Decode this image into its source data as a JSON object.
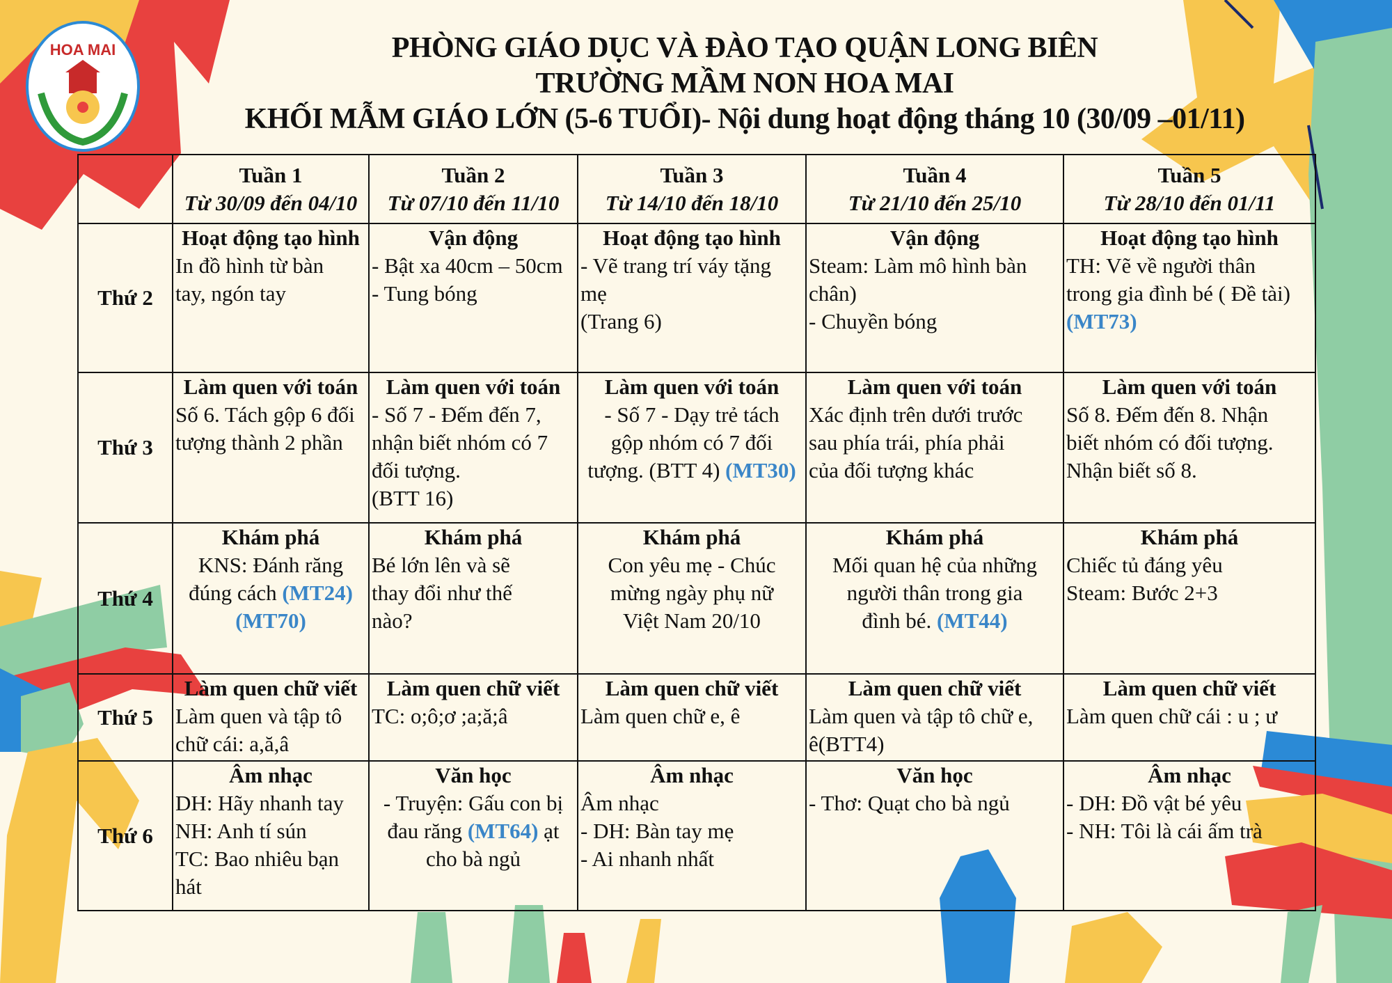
{
  "header": {
    "line1": "PHÒNG GIÁO DỤC VÀ ĐÀO TẠO QUẬN LONG BIÊN",
    "line2": "TRƯỜNG MẦM NON HOA MAI",
    "line3": "KHỐI MẪM GIÁO LỚN (5-6 TUỔI)- Nội dung hoạt động tháng 10 (30/09 –01/11)"
  },
  "logo": {
    "text_top": "TRƯỜNG MẦM NON",
    "text_name": "HOA MAI"
  },
  "colors": {
    "background": "#fdf8e9",
    "accent_blue": "#3a86c8",
    "deco_red": "#e8413f",
    "deco_yellow": "#f7c64e",
    "deco_green": "#8fcda4",
    "deco_blue": "#2b8ad6"
  },
  "weeks": [
    {
      "label": "Tuần 1",
      "range": "Từ 30/09 đến 04/10"
    },
    {
      "label": "Tuần 2",
      "range": "Từ 07/10 đến 11/10"
    },
    {
      "label": "Tuần 3",
      "range": "Từ 14/10 đến 18/10"
    },
    {
      "label": "Tuần 4",
      "range": "Từ 21/10 đến 25/10"
    },
    {
      "label": "Tuần 5",
      "range": "Từ 28/10 đến 01/11"
    }
  ],
  "rows": [
    {
      "day": "Thứ 2",
      "cells": [
        {
          "title": "Hoạt động tạo hình",
          "center": false,
          "lines": [
            [
              {
                "t": "In đồ hình từ bàn"
              }
            ],
            [
              {
                "t": "tay, ngón tay"
              }
            ]
          ]
        },
        {
          "title": "Vận động",
          "center": false,
          "lines": [
            [
              {
                "t": "- Bật xa 40cm – 50cm"
              }
            ],
            [
              {
                "t": "- Tung bóng"
              }
            ]
          ]
        },
        {
          "title": "Hoạt động tạo hình",
          "center": false,
          "lines": [
            [
              {
                "t": "- Vẽ trang trí váy tặng"
              }
            ],
            [
              {
                "t": "mẹ"
              }
            ],
            [
              {
                "t": "(Trang 6)"
              }
            ]
          ]
        },
        {
          "title": "Vận động",
          "center": false,
          "lines": [
            [
              {
                "t": "Steam: Làm mô hình bàn"
              }
            ],
            [
              {
                "t": "chân)"
              }
            ],
            [
              {
                "t": "- Chuyền bóng"
              }
            ]
          ]
        },
        {
          "title": "Hoạt động tạo hình",
          "center": false,
          "lines": [
            [
              {
                "t": "TH: Vẽ về người thân"
              }
            ],
            [
              {
                "t": "trong gia đình bé ( Đề tài)"
              }
            ],
            [
              {
                "t": "(MT73)",
                "blue": true
              }
            ]
          ]
        }
      ]
    },
    {
      "day": "Thứ 3",
      "cells": [
        {
          "title": "Làm quen với toán",
          "center": false,
          "lines": [
            [
              {
                "t": "Số 6. Tách gộp 6 đối"
              }
            ],
            [
              {
                "t": " tượng thành 2 phần"
              }
            ]
          ]
        },
        {
          "title": "Làm quen với toán",
          "center": false,
          "lines": [
            [
              {
                "t": "- Số 7 - Đếm đến 7,"
              }
            ],
            [
              {
                "t": "nhận biết nhóm có 7"
              }
            ],
            [
              {
                "t": "đối tượng."
              }
            ],
            [
              {
                "t": "(BTT 16)"
              }
            ]
          ]
        },
        {
          "title": "Làm quen với toán",
          "center": true,
          "lines": [
            [
              {
                "t": "- Số 7 - Dạy trẻ tách"
              }
            ],
            [
              {
                "t": "gộp nhóm có 7 đối"
              }
            ],
            [
              {
                "t": "tượng. (BTT 4) "
              },
              {
                "t": "(MT30)",
                "blue": true
              }
            ]
          ]
        },
        {
          "title": "Làm quen với toán",
          "center": false,
          "lines": [
            [
              {
                "t": "Xác định trên dưới trước"
              }
            ],
            [
              {
                "t": "sau phía trái, phía phải"
              }
            ],
            [
              {
                "t": "của đối tượng khác"
              }
            ]
          ]
        },
        {
          "title": "Làm quen với toán",
          "center": false,
          "lines": [
            [
              {
                "t": "Số 8. Đếm đến 8. Nhận"
              }
            ],
            [
              {
                "t": "biết nhóm có đối tượng."
              }
            ],
            [
              {
                "t": "Nhận biết số 8."
              }
            ]
          ]
        }
      ]
    },
    {
      "day": "Thứ 4",
      "cells": [
        {
          "title": "Khám phá",
          "center": true,
          "lines": [
            [
              {
                "t": "KNS: Đánh răng"
              }
            ],
            [
              {
                "t": "đúng cách "
              },
              {
                "t": "(MT24)",
                "blue": true
              }
            ],
            [
              {
                "t": "(MT70)",
                "blue": true
              }
            ]
          ]
        },
        {
          "title": "Khám phá",
          "center": false,
          "lines": [
            [
              {
                "t": "Bé lớn lên và sẽ"
              }
            ],
            [
              {
                "t": "thay đổi như thế"
              }
            ],
            [
              {
                "t": "nào?"
              }
            ]
          ]
        },
        {
          "title": "Khám phá",
          "center": true,
          "lines": [
            [
              {
                "t": "Con yêu mẹ - Chúc"
              }
            ],
            [
              {
                "t": "mừng ngày phụ nữ"
              }
            ],
            [
              {
                "t": "Việt Nam 20/10"
              }
            ]
          ]
        },
        {
          "title": "Khám phá",
          "center": true,
          "lines": [
            [
              {
                "t": "Mối quan hệ của những"
              }
            ],
            [
              {
                "t": "người thân trong gia"
              }
            ],
            [
              {
                "t": "đình bé. "
              },
              {
                "t": "(MT44)",
                "blue": true
              }
            ]
          ]
        },
        {
          "title": "Khám phá",
          "center": false,
          "lines": [
            [
              {
                "t": "Chiếc tủ đáng yêu"
              }
            ],
            [
              {
                "t": "Steam: Bước 2+3"
              }
            ]
          ]
        }
      ]
    },
    {
      "day": "Thứ 5",
      "cells": [
        {
          "title": "Làm quen chữ viết",
          "center": false,
          "lines": [
            [
              {
                "t": "Làm quen và tập tô"
              }
            ],
            [
              {
                "t": "chữ cái: a,ă,â"
              }
            ]
          ]
        },
        {
          "title": "Làm quen chữ viết",
          "center": false,
          "lines": [
            [
              {
                "t": "TC: o;ô;ơ ;a;ă;â"
              }
            ]
          ]
        },
        {
          "title": "Làm quen chữ viết",
          "center": false,
          "lines": [
            [
              {
                "t": "Làm quen chữ e, ê"
              }
            ]
          ]
        },
        {
          "title": "Làm quen chữ viết",
          "center": false,
          "lines": [
            [
              {
                "t": "Làm quen và tập tô chữ e,"
              }
            ],
            [
              {
                "t": "ê(BTT4)"
              }
            ]
          ]
        },
        {
          "title": "Làm quen chữ viết",
          "center": false,
          "lines": [
            [
              {
                "t": "Làm quen chữ cái : u ; ư"
              }
            ]
          ]
        }
      ]
    },
    {
      "day": "Thứ 6",
      "cells": [
        {
          "title": "Âm nhạc",
          "center": false,
          "lines": [
            [
              {
                "t": "DH: Hãy nhanh tay"
              }
            ],
            [
              {
                "t": "NH: Anh tí sún"
              }
            ],
            [
              {
                "t": "TC: Bao nhiêu bạn"
              }
            ],
            [
              {
                "t": "hát"
              }
            ]
          ]
        },
        {
          "title": "Văn học",
          "center": true,
          "lines": [
            [
              {
                "t": "- Truyện: Gấu con bị"
              }
            ],
            [
              {
                "t": "đau răng "
              },
              {
                "t": "(MT64)",
                "blue": true
              },
              {
                "t": " ạt"
              }
            ],
            [
              {
                "t": "cho bà ngủ"
              }
            ]
          ]
        },
        {
          "title": "Âm nhạc",
          "center": false,
          "lines": [
            [
              {
                "t": "Âm nhạc"
              }
            ],
            [
              {
                "t": "- DH: Bàn tay mẹ"
              }
            ],
            [
              {
                "t": "- Ai nhanh nhất"
              }
            ]
          ]
        },
        {
          "title": "Văn học",
          "center": false,
          "lines": [
            [
              {
                "t": "- Thơ: Quạt cho bà ngủ"
              }
            ]
          ]
        },
        {
          "title": "Âm nhạc",
          "center": false,
          "lines": [
            [
              {
                "t": "- DH: Đồ vật bé yêu"
              }
            ],
            [
              {
                "t": "- NH: Tôi là cái ấm trà"
              }
            ]
          ]
        }
      ]
    }
  ]
}
